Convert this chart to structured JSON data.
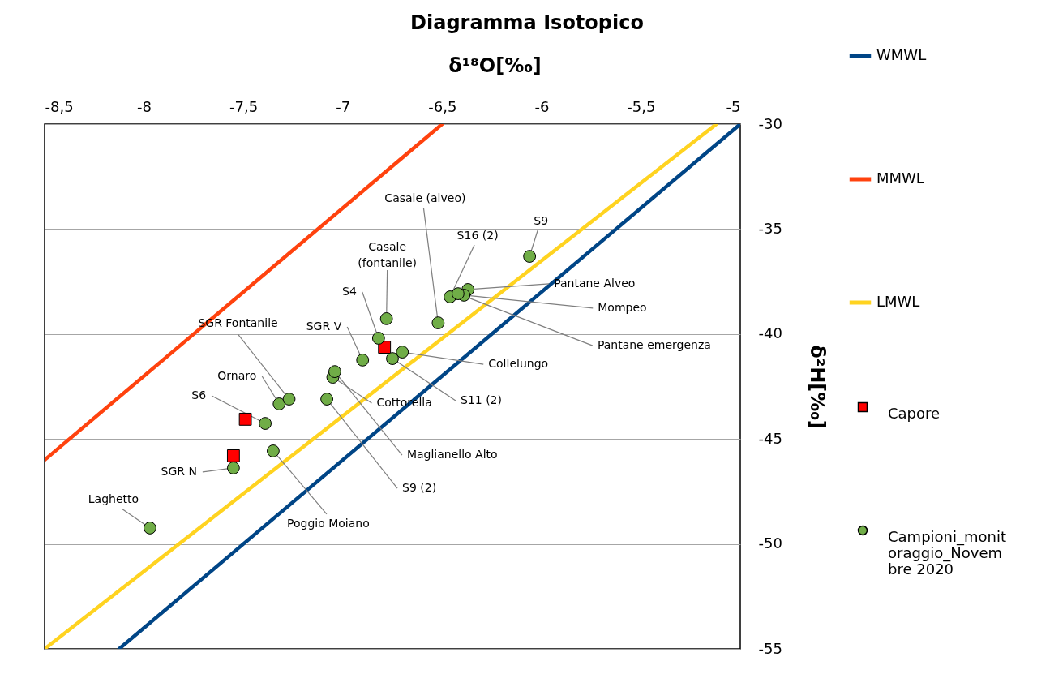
{
  "chart_data": {
    "type": "scatter",
    "title": "Diagramma Isotopico",
    "xlabel": "δ¹⁸O[‰]",
    "ylabel": "δ²H[‰]",
    "xlim": [
      -8.5,
      -5
    ],
    "ylim": [
      -55,
      -30
    ],
    "xticks": [
      {
        "value": -8.5,
        "label": "-8,5"
      },
      -8,
      {
        "value": -7.5,
        "label": "-7,5"
      },
      -7,
      {
        "value": -6.5,
        "label": "-6,5"
      },
      -6,
      {
        "value": -5.5,
        "label": "-5,5"
      },
      -5
    ],
    "yticks": [
      -55,
      -50,
      -45,
      -40,
      -35,
      -30
    ],
    "grid": "y",
    "legend": "right",
    "series": [
      {
        "name": "WMWL",
        "type": "line",
        "color": "#004586",
        "line_style": "solid",
        "x": [
          -8.125,
          -5
        ],
        "values": [
          -55,
          -30
        ]
      },
      {
        "name": "MMWL",
        "type": "line",
        "color": "#ff420e",
        "line_style": "solid",
        "x": [
          -8.5,
          -6.5
        ],
        "values": [
          -46,
          -30
        ]
      },
      {
        "name": "LMWL",
        "type": "line",
        "color": "#ffd320",
        "line_style": "solid",
        "x": [
          -8.5,
          -5.12
        ],
        "values": [
          -55,
          -30
        ]
      },
      {
        "name": "Capore",
        "color": "#ff0000",
        "marker": "square",
        "x": [
          -7.49,
          -7.55,
          -6.79
        ],
        "values": [
          -44.06,
          -45.8,
          -40.63
        ]
      },
      {
        "name": "Campioni_monitoraggio_Novembre 2020",
        "color": "#70ad47",
        "marker": "circle",
        "x": [
          -7.97,
          -7.55,
          -7.35,
          -7.39,
          -7.32,
          -7.27,
          -7.08,
          -7.05,
          -7.04,
          -6.9,
          -6.82,
          -6.78,
          -6.75,
          -6.7,
          -6.52,
          -6.46,
          -6.37,
          -6.39,
          -6.42,
          -6.06
        ],
        "values": [
          -49.24,
          -46.38,
          -45.57,
          -44.26,
          -43.33,
          -43.1,
          -43.1,
          -42.06,
          -41.79,
          -41.24,
          -40.2,
          -39.27,
          -41.17,
          -40.86,
          -39.47,
          -38.23,
          -37.88,
          -38.15,
          -38.08,
          -36.3
        ]
      }
    ],
    "annotations": [
      {
        "text": "Laghetto",
        "x": -7.97,
        "y": -49.24
      },
      {
        "text": "SGR N",
        "x": -7.55,
        "y": -46.38
      },
      {
        "text": "Poggio Moiano",
        "x": -7.35,
        "y": -45.57
      },
      {
        "text": "S6",
        "x": -7.39,
        "y": -44.26
      },
      {
        "text": "Ornaro",
        "x": -7.32,
        "y": -43.33
      },
      {
        "text": "SGR Fontanile",
        "x": -7.27,
        "y": -43.1
      },
      {
        "text": "S9 (2)",
        "x": -7.08,
        "y": -43.1
      },
      {
        "text": "Cottorella",
        "x": -7.05,
        "y": -42.06
      },
      {
        "text": "Maglianello Alto",
        "x": -7.04,
        "y": -41.79
      },
      {
        "text": "SGR V",
        "x": -6.9,
        "y": -41.24
      },
      {
        "text": "S4",
        "x": -6.82,
        "y": -40.2
      },
      {
        "text": "Casale (fontanile)",
        "x": -6.78,
        "y": -39.27
      },
      {
        "text": "S11 (2)",
        "x": -6.75,
        "y": -41.17
      },
      {
        "text": "Collelungo",
        "x": -6.7,
        "y": -40.86
      },
      {
        "text": "Casale (alveo)",
        "x": -6.52,
        "y": -39.47
      },
      {
        "text": "S16 (2)",
        "x": -6.46,
        "y": -38.23
      },
      {
        "text": "Pantane Alveo",
        "x": -6.37,
        "y": -37.88
      },
      {
        "text": "Mompeo",
        "x": -6.39,
        "y": -38.15
      },
      {
        "text": "Pantane emergenza",
        "x": -6.42,
        "y": -38.08
      },
      {
        "text": "S9",
        "x": -6.06,
        "y": -36.3
      }
    ]
  }
}
